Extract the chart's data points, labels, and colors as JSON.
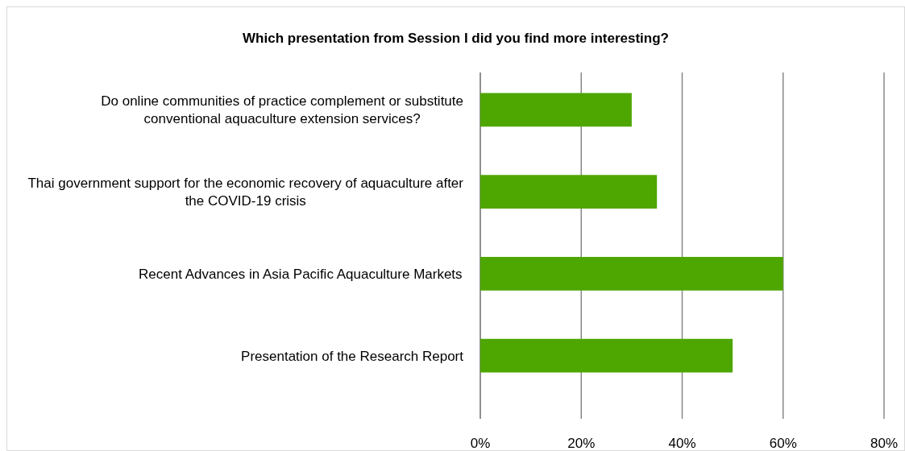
{
  "chart_data": {
    "type": "bar",
    "orientation": "horizontal",
    "title": "Which presentation from Session I did you find more interesting?",
    "categories": [
      "Do online communities of practice complement or substitute conventional aquaculture extension services?",
      "Thai government support for the economic recovery of aquaculture after the COVID-19 crisis",
      "Recent Advances in Asia Pacific Aquaculture Markets",
      "Presentation of the Research Report"
    ],
    "values": [
      30,
      35,
      60,
      50
    ],
    "color": "#4ea600",
    "xlim": [
      0,
      80
    ],
    "xticks": [
      {
        "value": 0,
        "label": "0%"
      },
      {
        "value": 20,
        "label": "20%"
      },
      {
        "value": 40,
        "label": "40%"
      },
      {
        "value": 60,
        "label": "60%"
      },
      {
        "value": 80,
        "label": "80%"
      }
    ],
    "grid": "x"
  }
}
